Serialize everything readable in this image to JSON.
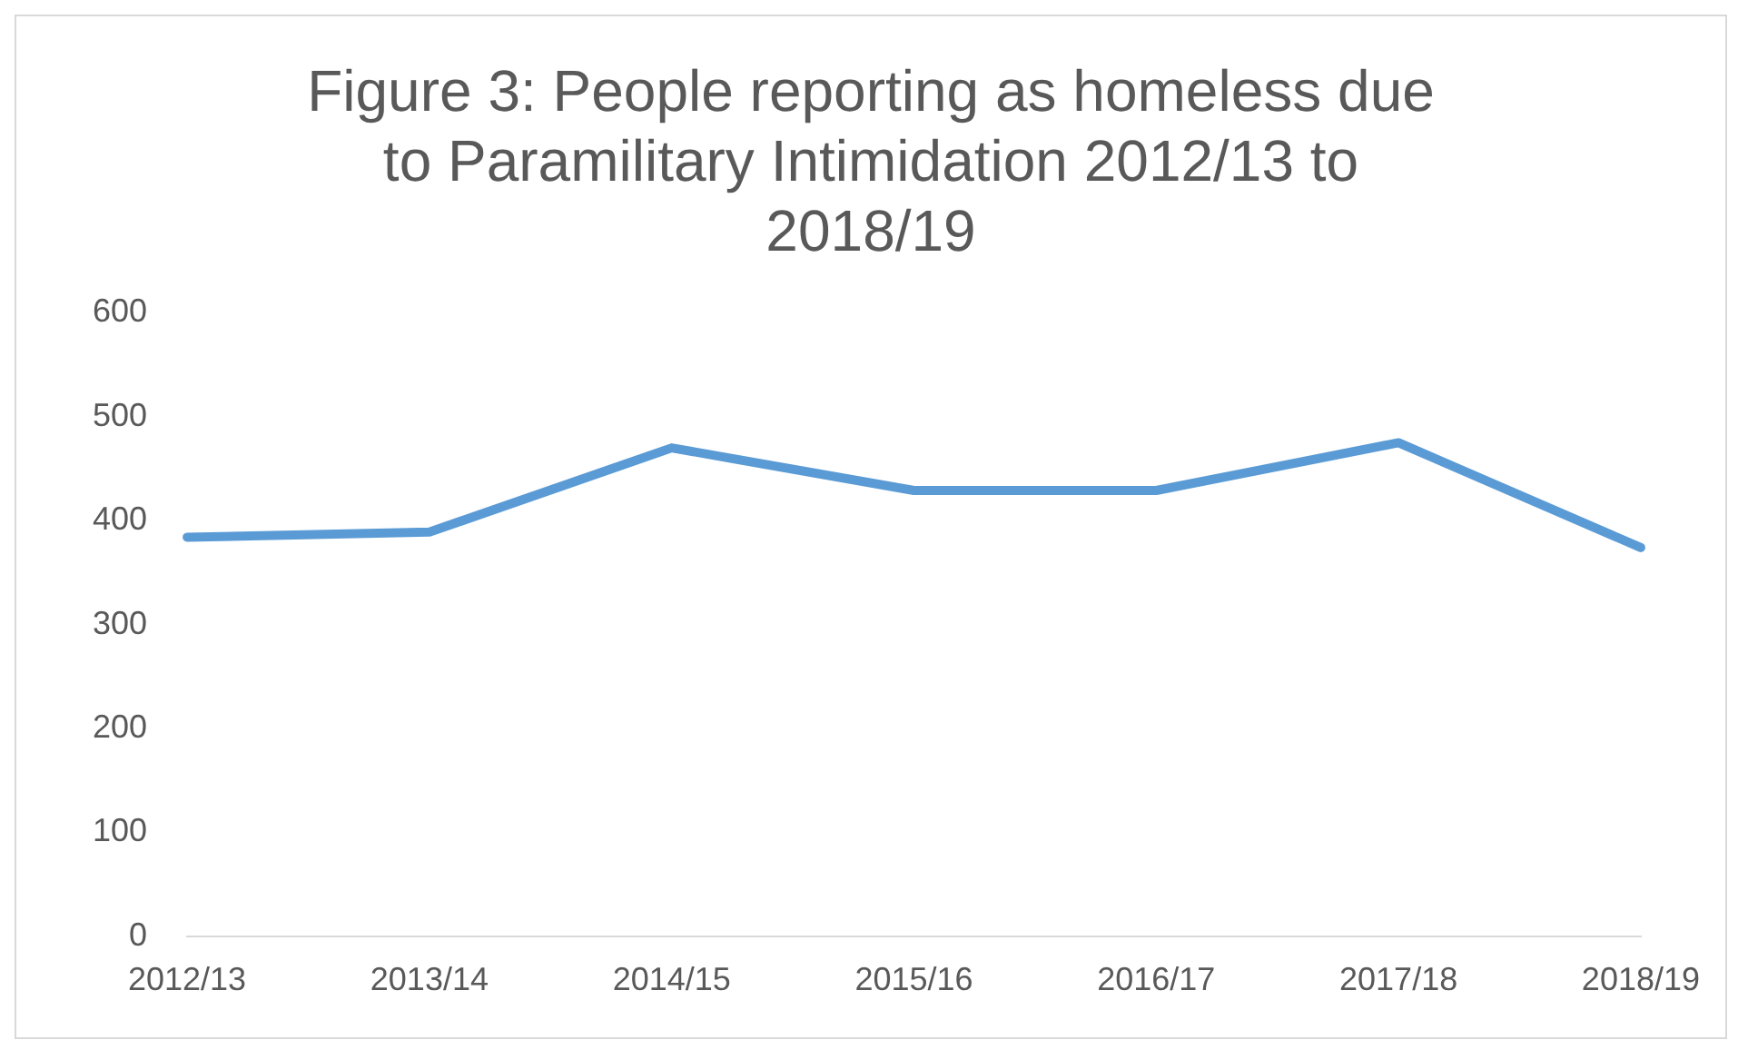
{
  "chart_data": {
    "type": "line",
    "title": "Figure 3: People reporting as homeless due to Paramilitary Intimidation 2012/13 to 2018/19",
    "categories": [
      "2012/13",
      "2013/14",
      "2014/15",
      "2015/16",
      "2016/17",
      "2017/18",
      "2018/19"
    ],
    "series": [
      {
        "color": "#5b9bd5",
        "values": [
          384,
          389,
          470,
          429,
          429,
          475,
          374
        ]
      }
    ],
    "ylim": [
      0,
      600
    ],
    "yticks": [
      0,
      100,
      200,
      300,
      400,
      500,
      600
    ],
    "grid": false,
    "legend": false,
    "marker": "none",
    "line_style": "solid"
  }
}
